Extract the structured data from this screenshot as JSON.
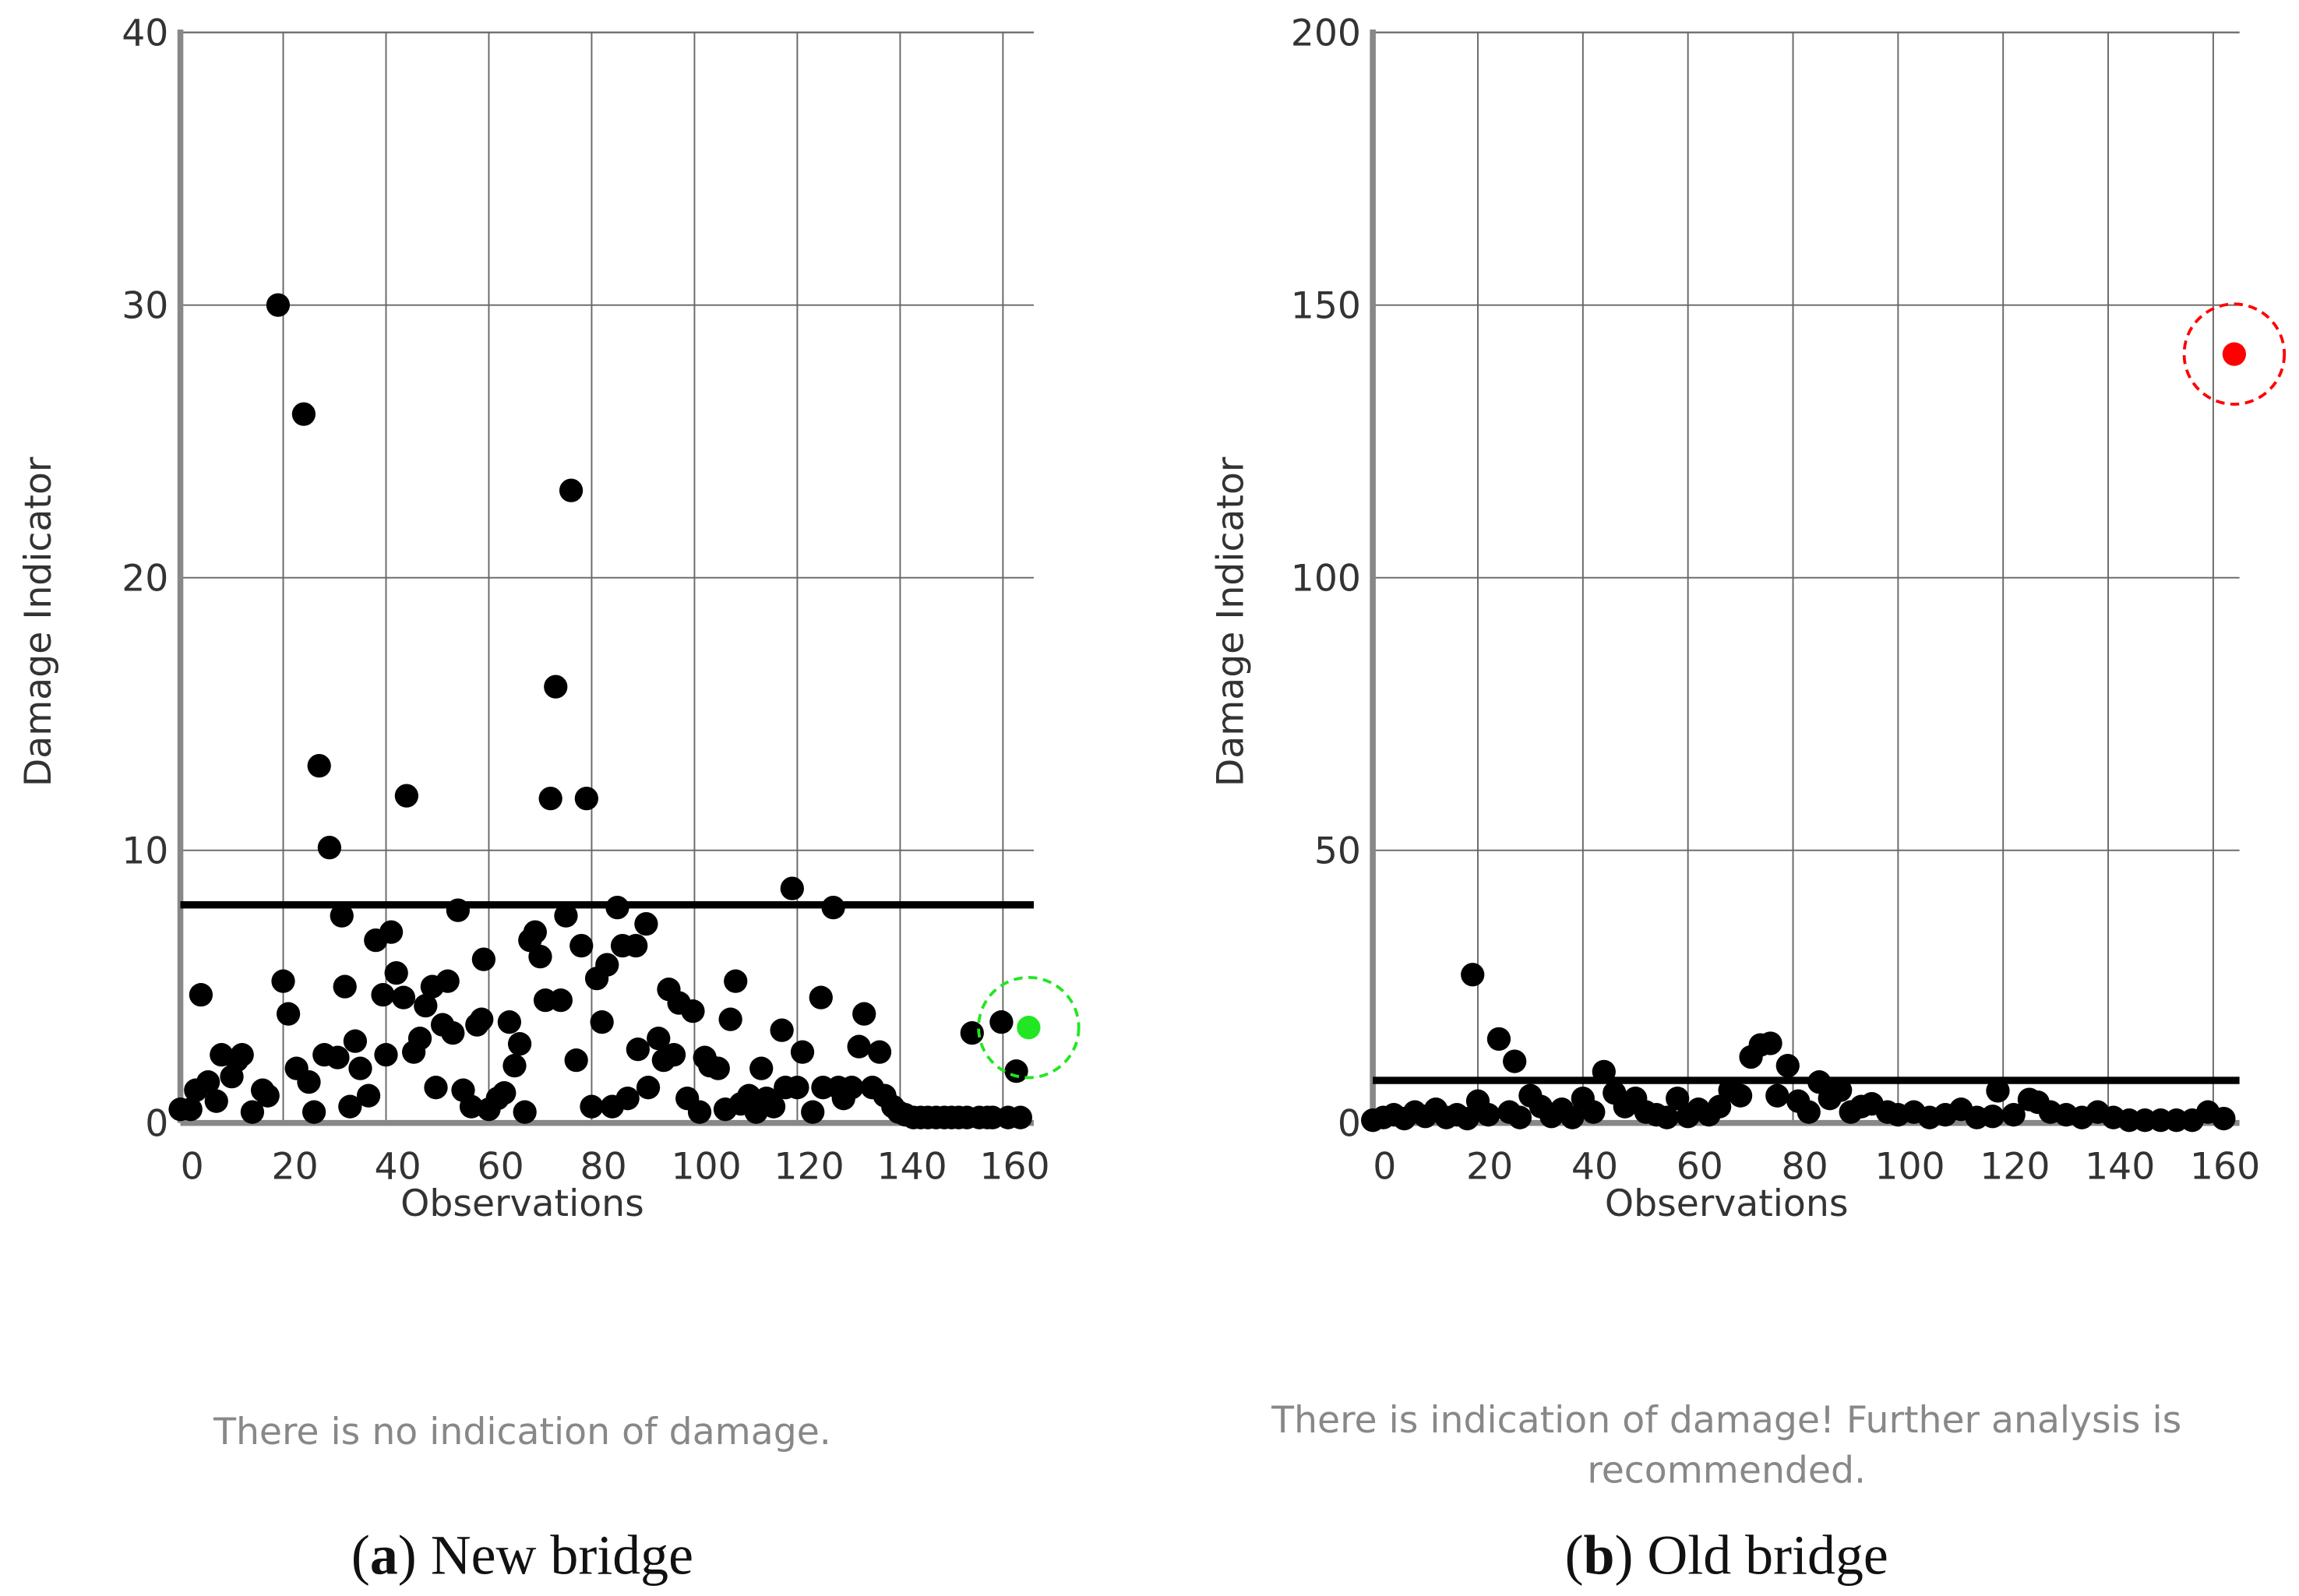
{
  "chart_data": [
    {
      "type": "scatter",
      "xlabel": "Observations",
      "ylabel": "Damage Indicator",
      "xlim": [
        0,
        166
      ],
      "xticks": [
        0,
        20,
        40,
        60,
        80,
        100,
        120,
        140,
        160
      ],
      "ylim": [
        0,
        40
      ],
      "yticks": [
        0,
        10,
        20,
        30,
        40
      ],
      "grid": true,
      "threshold": 8,
      "series": [
        {
          "color": "#000000",
          "x": [
            0,
            2,
            3,
            4,
            5.4,
            7,
            8,
            10,
            11,
            12,
            14,
            16,
            17,
            19,
            20,
            21,
            22.6,
            24,
            25,
            26,
            27,
            28,
            29,
            30.6,
            31.4,
            32,
            33,
            34,
            35,
            36.6,
            38,
            39.4,
            40,
            41,
            42,
            43.4,
            44,
            45.4,
            46.6,
            47.7,
            49,
            49.7,
            51,
            52,
            53,
            54,
            55,
            56.6,
            57.7,
            58.6,
            59,
            60,
            61.7,
            63,
            64,
            65,
            66,
            67,
            68,
            69,
            70,
            71,
            72,
            73,
            74,
            75,
            76,
            77,
            78,
            79,
            80,
            81,
            82,
            83,
            84,
            85,
            86,
            87,
            88.6,
            89,
            90.6,
            91,
            93,
            94,
            95,
            96,
            97,
            98.6,
            99.7,
            101,
            102,
            103,
            104.6,
            106,
            107,
            108,
            109,
            110.6,
            112,
            113,
            114,
            115.4,
            117,
            117.7,
            119,
            120,
            121,
            123,
            124.6,
            125,
            127,
            128,
            129,
            130.6,
            132,
            133,
            134.6,
            136,
            137,
            138.6,
            139.7,
            141,
            142.6,
            144,
            145.4,
            147,
            148.6,
            150,
            151.4,
            153,
            154,
            155.4,
            157,
            158,
            159.7,
            161,
            162.6,
            163.4
          ],
          "values": [
            0.5,
            0.5,
            1.2,
            4.7,
            1.5,
            0.8,
            2.5,
            1.7,
            2.3,
            2.5,
            0.4,
            1.2,
            1.0,
            30,
            5.2,
            4.0,
            2.0,
            26,
            1.5,
            0.4,
            13.1,
            2.5,
            10.1,
            2.4,
            7.6,
            5.0,
            0.6,
            3.0,
            2.0,
            1.0,
            6.7,
            4.7,
            2.5,
            7.0,
            5.5,
            4.6,
            12,
            2.6,
            3.1,
            4.3,
            5.0,
            1.3,
            3.6,
            5.2,
            3.3,
            7.8,
            1.2,
            0.6,
            3.6,
            3.8,
            6.0,
            0.5,
            0.9,
            1.1,
            3.7,
            2.1,
            2.9,
            0.4,
            6.7,
            7.0,
            6.1,
            4.5,
            11.9,
            16,
            4.5,
            7.6,
            23.2,
            2.3,
            6.5,
            11.9,
            0.6,
            5.3,
            3.7,
            5.8,
            0.6,
            7.9,
            6.5,
            0.9,
            6.5,
            2.7,
            7.3,
            1.3,
            3.1,
            2.3,
            4.9,
            2.5,
            4.4,
            0.9,
            4.1,
            0.4,
            2.4,
            2.1,
            2.0,
            0.5,
            3.8,
            5.2,
            0.7,
            1.0,
            0.4,
            2.0,
            0.9,
            0.6,
            3.4,
            1.3,
            8.6,
            1.3,
            2.6,
            0.4,
            4.6,
            1.3,
            7.9,
            1.3,
            0.9,
            1.3,
            2.8,
            4.0,
            1.3,
            2.6,
            1.0,
            0.6,
            0.4,
            0.3,
            0.2,
            0.2,
            0.2,
            0.2,
            0.2,
            0.2,
            0.2,
            0.2,
            3.3,
            0.2,
            0.2,
            0.2,
            3.7,
            0.2,
            1.9,
            0.2
          ]
        },
        {
          "color": "#22e622",
          "highlight": true,
          "x": [
            165
          ],
          "values": [
            3.5
          ]
        }
      ],
      "message_lines": [
        "There is no indication of damage."
      ],
      "caption": [
        "(",
        "a",
        ") New bridge"
      ]
    },
    {
      "type": "scatter",
      "xlabel": "Observations",
      "ylabel": "Damage Indicator",
      "xlim": [
        0,
        165
      ],
      "xticks": [
        0,
        20,
        40,
        60,
        80,
        100,
        120,
        140,
        160
      ],
      "ylim": [
        0,
        200
      ],
      "yticks": [
        0,
        50,
        100,
        150,
        200
      ],
      "grid": true,
      "threshold": 7.8,
      "series": [
        {
          "color": "#000000",
          "x": [
            0,
            2,
            4,
            6,
            8,
            10,
            12,
            14,
            16,
            18,
            19,
            20,
            22,
            24,
            26,
            27,
            28,
            30,
            32,
            34,
            36,
            38,
            40,
            42,
            44,
            46,
            48,
            50,
            52,
            54,
            56,
            58,
            60,
            62,
            64,
            66,
            68,
            70,
            72,
            73.8,
            75.7,
            77,
            79,
            81,
            83,
            85,
            87,
            89,
            91,
            93,
            95,
            98,
            100,
            103,
            106,
            109,
            112,
            115,
            118,
            119,
            122,
            125,
            126.6,
            129,
            132,
            135,
            138,
            141,
            144,
            147,
            150,
            153,
            156,
            159,
            162
          ],
          "values": [
            0.5,
            1,
            1.5,
            0.8,
            2,
            1.2,
            2.5,
            1,
            1.5,
            0.8,
            27.2,
            4,
            1.5,
            15.4,
            2,
            11.3,
            1,
            5,
            3,
            1.2,
            2.5,
            1,
            4.5,
            2,
            9.4,
            5.5,
            3,
            4.5,
            2,
            1.5,
            1,
            4.5,
            1.2,
            2.5,
            1.5,
            3,
            6,
            5,
            12.1,
            14.3,
            14.6,
            5,
            10.5,
            4,
            2,
            7.5,
            4.5,
            6,
            2,
            3,
            3.5,
            2,
            1.5,
            2,
            1,
            1.5,
            2.5,
            1,
            1.2,
            5.9,
            1.5,
            4.3,
            3.8,
            2,
            1.5,
            1,
            2,
            1,
            0.5,
            0.5,
            0.5,
            0.5,
            0.5,
            2,
            0.8
          ]
        },
        {
          "color": "#ff0000",
          "highlight": true,
          "x": [
            164
          ],
          "values": [
            141
          ]
        }
      ],
      "message_lines": [
        "There is indication of damage! Further analysis is",
        "recommended."
      ],
      "caption": [
        "(",
        "b",
        ") Old bridge"
      ]
    }
  ]
}
